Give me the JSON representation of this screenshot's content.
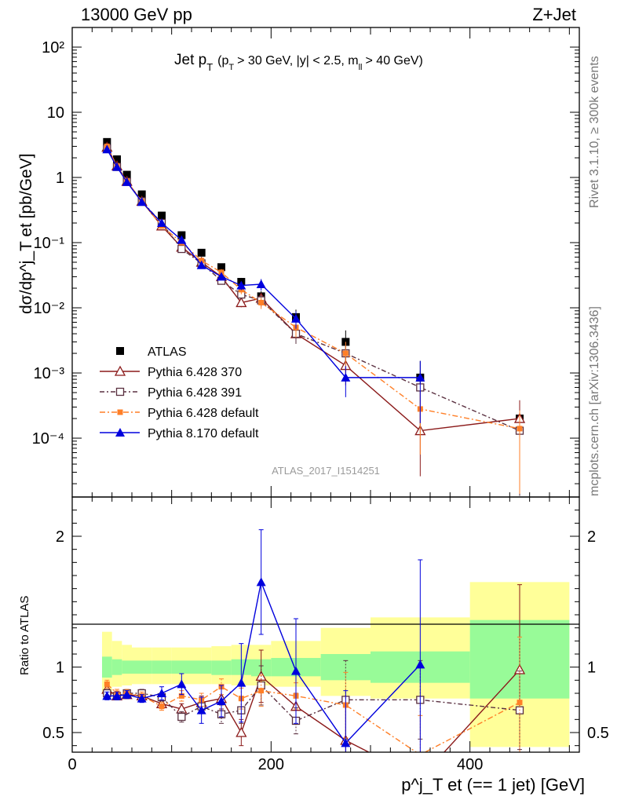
{
  "header": {
    "left": "13000 GeV pp",
    "right": "Z+Jet"
  },
  "side": {
    "rivet": "Rivet 3.1.10, ≥ 300k events",
    "mcplots": "mcplots.cern.ch [arXiv:1306.3436]"
  },
  "colors": {
    "atlas": "#000000",
    "p370": "#8b1a1a",
    "p391": "#5a3040",
    "pdef": "#ff7f27",
    "p8": "#0000dd",
    "band_inner": "#98fb98",
    "band_outer": "#ffff99"
  },
  "chart_data": [
    {
      "type": "line",
      "panel": "main",
      "title_main": "Jet p",
      "title_main_sub": "T",
      "title_cuts": "(p",
      "title_cuts_sub": "T",
      "title_cuts_rest": "> 30 GeV, |y| < 2.5, m",
      "title_cuts_sub2": "ll",
      "title_cuts_end": "> 40 GeV)",
      "watermark": "ATLAS_2017_I1514251",
      "ylabel": "dσ/dp^j_T et [pb/GeV]",
      "yscale": "log",
      "ylim": [
        1.25e-05,
        200
      ],
      "xlim": [
        0,
        510
      ],
      "ytick_labels": [
        "10⁻⁴",
        "10⁻³",
        "10⁻²",
        "10⁻¹",
        "1",
        "10",
        "10²"
      ],
      "legend": [
        "ATLAS",
        "Pythia 6.428 370",
        "Pythia 6.428 391",
        "Pythia 6.428 default",
        "Pythia 8.170 default"
      ],
      "x": [
        35,
        45,
        55,
        70,
        90,
        110,
        130,
        150,
        170,
        190,
        225,
        275,
        350,
        450
      ],
      "series": [
        {
          "name": "ATLAS",
          "values": [
            3.5,
            1.9,
            1.1,
            0.55,
            0.26,
            0.13,
            0.07,
            0.042,
            0.025,
            0.015,
            0.0072,
            0.003,
            0.00085,
            0.0002
          ]
        },
        {
          "name": "Pythia 6.428 370",
          "values": [
            2.9,
            1.5,
            0.87,
            0.43,
            0.18,
            0.085,
            0.05,
            0.03,
            0.012,
            0.014,
            0.004,
            0.0013,
            0.00013,
            0.0002
          ]
        },
        {
          "name": "Pythia 6.428 391",
          "values": [
            2.8,
            1.45,
            0.86,
            0.43,
            0.2,
            0.08,
            0.048,
            0.026,
            0.016,
            0.013,
            0.004,
            0.002,
            0.0006,
            0.00013
          ]
        },
        {
          "name": "Pythia 6.428 default",
          "values": [
            3.0,
            1.5,
            0.88,
            0.43,
            0.18,
            0.1,
            0.053,
            0.035,
            0.019,
            0.012,
            0.005,
            0.002,
            0.00028,
            0.00014
          ]
        },
        {
          "name": "Pythia 8.170 default",
          "values": [
            2.7,
            1.45,
            0.85,
            0.42,
            0.2,
            0.11,
            0.045,
            0.03,
            0.022,
            0.023,
            0.0068,
            0.00085,
            0.00085,
            null
          ]
        }
      ]
    },
    {
      "type": "line",
      "panel": "ratio",
      "ylabel": "Ratio to ATLAS",
      "xlabel": "p^j_T et (== 1 jet) [GeV]",
      "xlim": [
        0,
        510
      ],
      "ylim": [
        0.35,
        2.3
      ],
      "xticks": [
        0,
        200,
        400
      ],
      "yticks": [
        0.5,
        1,
        2
      ],
      "band_inner": [
        {
          "x0": 30,
          "x1": 40,
          "lo": 0.92,
          "hi": 1.08
        },
        {
          "x0": 40,
          "x1": 50,
          "lo": 0.94,
          "hi": 1.06
        },
        {
          "x0": 50,
          "x1": 60,
          "lo": 0.95,
          "hi": 1.05
        },
        {
          "x0": 60,
          "x1": 80,
          "lo": 0.95,
          "hi": 1.05
        },
        {
          "x0": 80,
          "x1": 100,
          "lo": 0.95,
          "hi": 1.05
        },
        {
          "x0": 100,
          "x1": 120,
          "lo": 0.95,
          "hi": 1.05
        },
        {
          "x0": 120,
          "x1": 140,
          "lo": 0.95,
          "hi": 1.05
        },
        {
          "x0": 140,
          "x1": 160,
          "lo": 0.94,
          "hi": 1.05
        },
        {
          "x0": 160,
          "x1": 180,
          "lo": 0.94,
          "hi": 1.06
        },
        {
          "x0": 180,
          "x1": 200,
          "lo": 0.93,
          "hi": 1.06
        },
        {
          "x0": 200,
          "x1": 250,
          "lo": 0.93,
          "hi": 1.07
        },
        {
          "x0": 250,
          "x1": 300,
          "lo": 0.9,
          "hi": 1.1
        },
        {
          "x0": 300,
          "x1": 400,
          "lo": 0.88,
          "hi": 1.12
        },
        {
          "x0": 400,
          "x1": 500,
          "lo": 0.76,
          "hi": 1.36
        }
      ],
      "band_outer": [
        {
          "x0": 30,
          "x1": 40,
          "lo": 0.81,
          "hi": 1.27
        },
        {
          "x0": 40,
          "x1": 50,
          "lo": 0.85,
          "hi": 1.2
        },
        {
          "x0": 50,
          "x1": 60,
          "lo": 0.86,
          "hi": 1.17
        },
        {
          "x0": 60,
          "x1": 80,
          "lo": 0.87,
          "hi": 1.15
        },
        {
          "x0": 80,
          "x1": 100,
          "lo": 0.87,
          "hi": 1.15
        },
        {
          "x0": 100,
          "x1": 120,
          "lo": 0.87,
          "hi": 1.15
        },
        {
          "x0": 120,
          "x1": 140,
          "lo": 0.87,
          "hi": 1.15
        },
        {
          "x0": 140,
          "x1": 160,
          "lo": 0.87,
          "hi": 1.16
        },
        {
          "x0": 160,
          "x1": 180,
          "lo": 0.86,
          "hi": 1.17
        },
        {
          "x0": 180,
          "x1": 200,
          "lo": 0.86,
          "hi": 1.17
        },
        {
          "x0": 200,
          "x1": 250,
          "lo": 0.85,
          "hi": 1.2
        },
        {
          "x0": 250,
          "x1": 300,
          "lo": 0.78,
          "hi": 1.3
        },
        {
          "x0": 300,
          "x1": 400,
          "lo": 0.76,
          "hi": 1.38
        },
        {
          "x0": 400,
          "x1": 500,
          "lo": 0.39,
          "hi": 1.65
        }
      ],
      "x": [
        35,
        45,
        55,
        70,
        90,
        110,
        130,
        150,
        170,
        190,
        225,
        275,
        350,
        450
      ],
      "series": [
        {
          "name": "Pythia 6.428 370",
          "values": [
            0.83,
            0.78,
            0.79,
            0.78,
            0.72,
            0.68,
            0.73,
            0.76,
            0.5,
            0.93,
            0.7,
            0.44,
            0.15,
            0.98
          ],
          "err": [
            0.04,
            0.03,
            0.03,
            0.03,
            0.03,
            0.04,
            0.05,
            0.08,
            0.1,
            0.2,
            0.1,
            0.3,
            0.2,
            0.65
          ]
        },
        {
          "name": "Pythia 6.428 391",
          "values": [
            0.8,
            0.78,
            0.8,
            0.8,
            0.77,
            0.62,
            0.7,
            0.64,
            0.67,
            0.86,
            0.59,
            0.75,
            0.75,
            0.67
          ],
          "err": [
            0.03,
            0.03,
            0.03,
            0.03,
            0.03,
            0.04,
            0.05,
            0.07,
            0.1,
            0.15,
            0.1,
            0.3,
            0.3,
            0.3
          ]
        },
        {
          "name": "Pythia 6.428 default",
          "values": [
            0.87,
            0.8,
            0.8,
            0.78,
            0.7,
            0.78,
            0.75,
            0.85,
            0.76,
            0.82,
            0.78,
            0.71,
            0.33,
            0.73
          ],
          "err": [
            0.03,
            0.03,
            0.03,
            0.03,
            0.03,
            0.04,
            0.05,
            0.06,
            0.08,
            0.12,
            0.1,
            0.25,
            0.3,
            0.5
          ]
        },
        {
          "name": "Pythia 8.170 default",
          "values": [
            0.78,
            0.78,
            0.79,
            0.76,
            0.8,
            0.87,
            0.67,
            0.74,
            0.88,
            1.65,
            0.97,
            0.42,
            1.02,
            null
          ],
          "err": [
            0.03,
            0.03,
            0.03,
            0.03,
            0.05,
            0.08,
            0.1,
            0.12,
            0.3,
            0.4,
            0.4,
            0.4,
            0.8,
            null
          ]
        }
      ]
    }
  ]
}
